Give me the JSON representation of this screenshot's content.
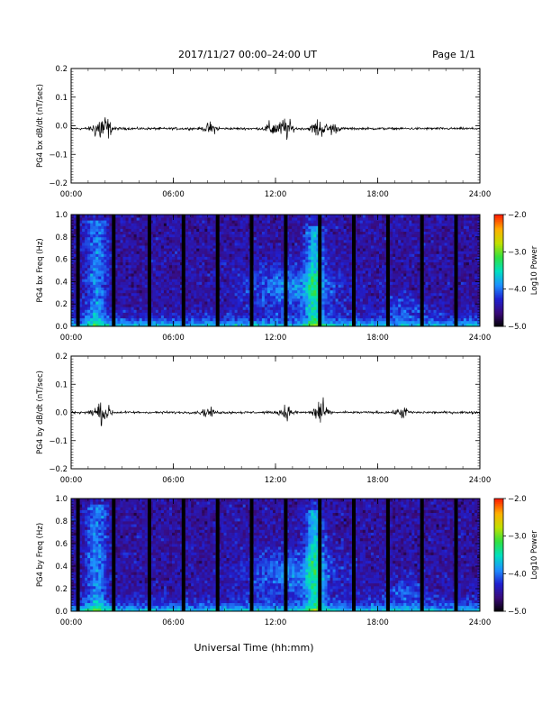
{
  "header": {
    "title": "2017/11/27  00:00–24:00 UT",
    "page": "Page 1/1"
  },
  "xlabel": "Universal Time (hh:mm)",
  "colors": {
    "trace": "#000000",
    "background": "#ffffff",
    "colormap": [
      "#000000",
      "#3a0a78",
      "#2020d0",
      "#1e90ff",
      "#00e0c0",
      "#30e040",
      "#c0e000",
      "#ffb000",
      "#ff2000"
    ]
  },
  "chart_data": [
    {
      "id": "bx-dbdt",
      "type": "line",
      "ylabel": "PG4 bx dB/dt (nT/sec)",
      "xlim": [
        0,
        24
      ],
      "ylim": [
        -0.2,
        0.2
      ],
      "xticks": [
        "00:00",
        "06:00",
        "12:00",
        "18:00",
        "24:00"
      ],
      "yticks": [
        "0.2",
        "0.1",
        "0.0",
        "−0.1",
        "−0.2"
      ],
      "baseline": -0.01,
      "activity": [
        {
          "t": 1.6,
          "amp": 0.05
        },
        {
          "t": 2.0,
          "amp": 0.06
        },
        {
          "t": 8.2,
          "amp": 0.03
        },
        {
          "t": 11.8,
          "amp": 0.04
        },
        {
          "t": 12.6,
          "amp": 0.06
        },
        {
          "t": 14.5,
          "amp": 0.05
        },
        {
          "t": 15.3,
          "amp": 0.03
        }
      ]
    },
    {
      "id": "bx-spectrogram",
      "type": "heatmap",
      "ylabel": "PG4 bx Freq (Hz)",
      "xlim": [
        0,
        24
      ],
      "ylim": [
        0.0,
        1.0
      ],
      "xticks": [
        "00:00",
        "06:00",
        "12:00",
        "18:00",
        "24:00"
      ],
      "yticks": [
        "1.0",
        "0.8",
        "0.6",
        "0.4",
        "0.2",
        "0.0"
      ],
      "colorbar": {
        "label": "Log10 Power",
        "range": [
          -5.0,
          -2.0
        ],
        "ticks": [
          "−2.0",
          "−3.0",
          "−4.0",
          "−5.0"
        ]
      },
      "gaps_hours": [
        0.4,
        2.5,
        4.6,
        6.6,
        8.6,
        10.6,
        12.6,
        14.6,
        16.6,
        18.6,
        20.6,
        22.6
      ]
    },
    {
      "id": "by-dbdt",
      "type": "line",
      "ylabel": "PG4 by dB/dt (nT/sec)",
      "xlim": [
        0,
        24
      ],
      "ylim": [
        -0.2,
        0.2
      ],
      "xticks": [
        "00:00",
        "06:00",
        "12:00",
        "18:00",
        "24:00"
      ],
      "yticks": [
        "0.2",
        "0.1",
        "0.0",
        "−0.1",
        "−0.2"
      ],
      "baseline": 0.0,
      "activity": [
        {
          "t": 1.6,
          "amp": 0.04
        },
        {
          "t": 2.0,
          "amp": 0.04
        },
        {
          "t": 8.0,
          "amp": 0.025
        },
        {
          "t": 12.6,
          "amp": 0.035
        },
        {
          "t": 14.6,
          "amp": 0.07
        },
        {
          "t": 19.5,
          "amp": 0.03
        }
      ]
    },
    {
      "id": "by-spectrogram",
      "type": "heatmap",
      "ylabel": "PG4 by Freq (Hz)",
      "xlim": [
        0,
        24
      ],
      "ylim": [
        0.0,
        1.0
      ],
      "xticks": [
        "00:00",
        "06:00",
        "12:00",
        "18:00",
        "24:00"
      ],
      "yticks": [
        "1.0",
        "0.8",
        "0.6",
        "0.4",
        "0.2",
        "0.0"
      ],
      "colorbar": {
        "label": "Log10 Power",
        "range": [
          -5.0,
          -2.0
        ],
        "ticks": [
          "−2.0",
          "−3.0",
          "−4.0",
          "−5.0"
        ]
      },
      "gaps_hours": [
        0.4,
        2.5,
        4.6,
        6.6,
        8.6,
        10.6,
        12.6,
        14.6,
        16.6,
        18.6,
        20.6,
        22.6
      ]
    }
  ]
}
